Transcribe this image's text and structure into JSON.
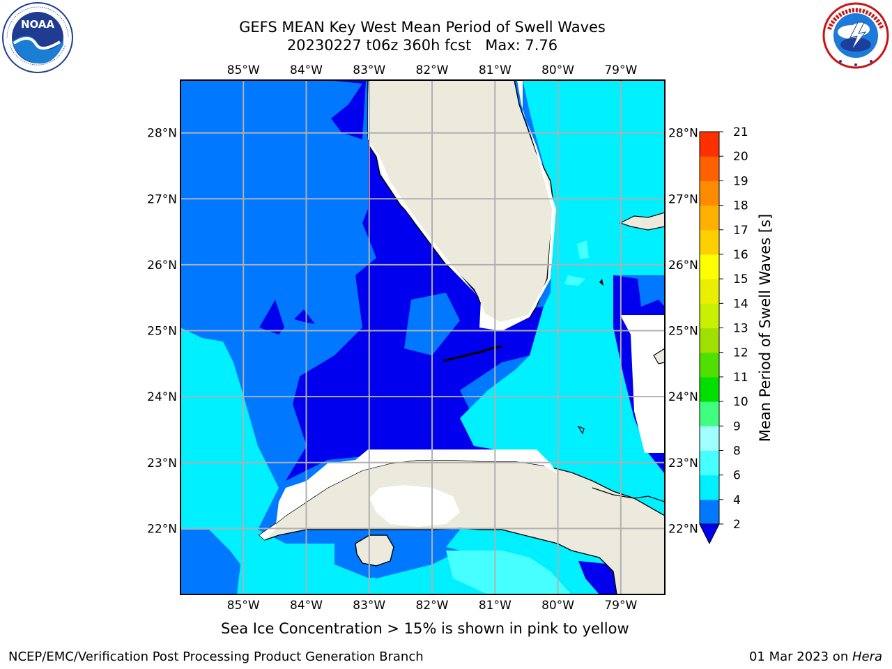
{
  "title": {
    "line1": "GEFS MEAN Key West Mean Period of Swell Waves",
    "line2": "20230227 t06z 360h fcst   Max: 7.76"
  },
  "logos": {
    "left": {
      "name": "NOAA",
      "icon": "noaa-logo",
      "ring_text": "NATIONAL OCEANIC AND ATMOSPHERIC ADMINISTRATION · U.S. DEPARTMENT OF COMMERCE"
    },
    "right": {
      "name": "NATIONAL WEATHER SERVICE",
      "icon": "nws-logo"
    }
  },
  "map": {
    "projection": "PlateCarree",
    "lon_range": [
      -86.0,
      -78.3
    ],
    "lat_range": [
      21.0,
      28.8
    ],
    "lon_ticks": [
      "85°W",
      "84°W",
      "83°W",
      "82°W",
      "81°W",
      "80°W",
      "79°W"
    ],
    "lon_values": [
      -85,
      -84,
      -83,
      -82,
      -81,
      -80,
      -79
    ],
    "lat_ticks": [
      "28°N",
      "27°N",
      "26°N",
      "25°N",
      "24°N",
      "23°N",
      "22°N"
    ],
    "lat_values": [
      28,
      27,
      26,
      25,
      24,
      23,
      22
    ],
    "grid": true,
    "land_color": "#eceadc",
    "ocean_fill_note": "Mostly 2-6 s swell period"
  },
  "colorbar": {
    "label": "Mean Period of Swell Waves [s]",
    "levels": [
      2,
      4,
      6,
      8,
      9,
      10,
      11,
      12,
      13,
      14,
      15,
      16,
      17,
      18,
      19,
      20,
      21
    ],
    "tick_labels": [
      "2",
      "4",
      "6",
      "8",
      "9",
      "10",
      "11",
      "12",
      "13",
      "14",
      "15",
      "16",
      "17",
      "18",
      "19",
      "20",
      "21"
    ],
    "colors": [
      "#0078ff",
      "#00f0ff",
      "#46ffff",
      "#a0ffff",
      "#40ff80",
      "#00e000",
      "#50e000",
      "#a0e000",
      "#c8f000",
      "#e8f000",
      "#ffff00",
      "#ffd000",
      "#ffb000",
      "#ff8c00",
      "#ff6000",
      "#ff3000"
    ],
    "under_color": "#0000ee",
    "extend": "min"
  },
  "note": "Sea Ice Concentration > 15% is shown in pink to yellow",
  "footer": {
    "left": "NCEP/EMC/Verification Post Processing Product Generation Branch",
    "right_date": "01 Mar 2023 on ",
    "right_host": "Hera"
  }
}
